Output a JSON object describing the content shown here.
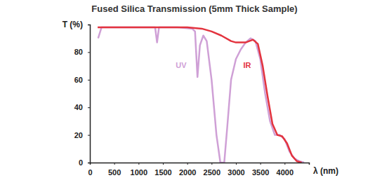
{
  "chart_data": {
    "type": "line",
    "title": "Fused Silica Transmission (5mm Thick Sample)",
    "x_label": "λ (nm)",
    "y_label": "T (%)",
    "xlim": [
      0,
      4500
    ],
    "xticks": [
      0,
      500,
      1000,
      1500,
      2000,
      2500,
      3000,
      3500,
      4000
    ],
    "ylim": [
      0,
      100
    ],
    "yticks": [
      0,
      20,
      40,
      60,
      80
    ],
    "grid": false,
    "series": [
      {
        "name": "UV",
        "color": "#cfa0d6",
        "x": [
          170,
          240,
          600,
          1000,
          1340,
          1380,
          1420,
          1800,
          2100,
          2160,
          2210,
          2260,
          2330,
          2400,
          2500,
          2600,
          2680,
          2760,
          2820,
          2900,
          3000,
          3100,
          3200,
          3300,
          3400,
          3500,
          3600,
          3700,
          3800,
          3900,
          4000,
          4100,
          4200,
          4300,
          4400
        ],
        "values": [
          90,
          98,
          98,
          98,
          98,
          87,
          98,
          98,
          97,
          95,
          62,
          85,
          92,
          88,
          60,
          20,
          0,
          0,
          25,
          60,
          75,
          82,
          87,
          90,
          88,
          75,
          50,
          30,
          20,
          20,
          17,
          8,
          3,
          1,
          0
        ]
      },
      {
        "name": "IR",
        "color": "#e3333e",
        "x": [
          160,
          500,
          1000,
          1500,
          2000,
          2300,
          2500,
          2700,
          2900,
          3000,
          3200,
          3350,
          3450,
          3550,
          3650,
          3750,
          3850,
          3950,
          4050,
          4150,
          4250,
          4350
        ],
        "values": [
          98,
          98,
          98,
          98,
          98,
          97,
          95,
          92,
          88,
          87,
          87,
          89,
          86,
          70,
          48,
          28,
          20,
          19,
          14,
          5,
          1,
          0
        ]
      }
    ]
  }
}
